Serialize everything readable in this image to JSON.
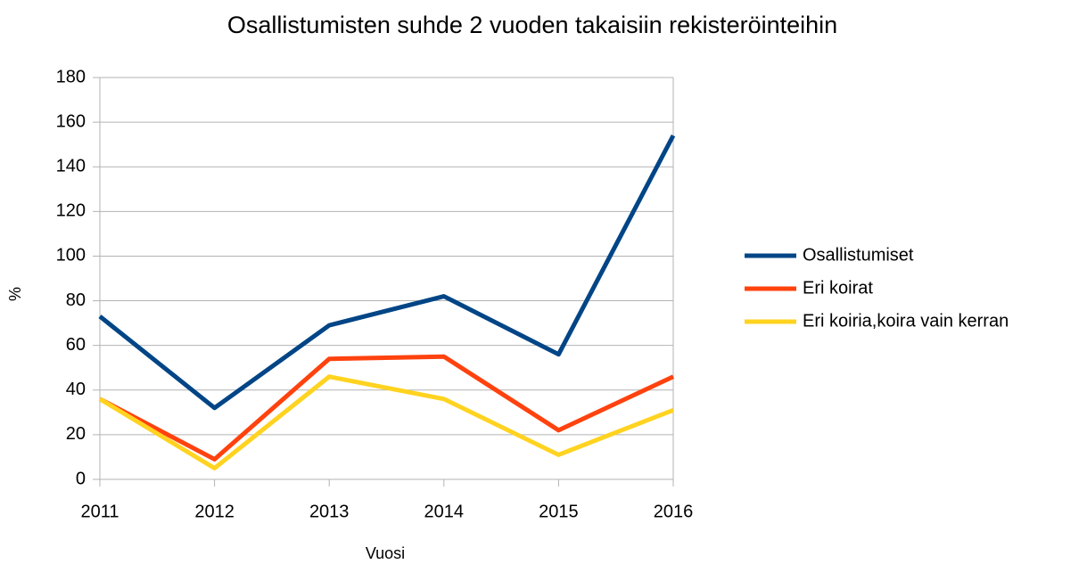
{
  "chart_data": {
    "type": "line",
    "title": "Osallistumisten suhde 2 vuoden takaisiin rekisteröinteihin",
    "x_label": "Vuosi",
    "y_label": "%",
    "categories": [
      "2011",
      "2012",
      "2013",
      "2014",
      "2015",
      "2016"
    ],
    "series": [
      {
        "name": "Osallistumiset",
        "color": "#004586",
        "values": [
          73,
          32,
          69,
          82,
          56,
          154
        ]
      },
      {
        "name": "Eri koirat",
        "color": "#ff420e",
        "values": [
          36,
          9,
          54,
          55,
          22,
          46
        ]
      },
      {
        "name": "Eri koiria,koira vain kerran",
        "color": "#ffd320",
        "values": [
          36,
          5,
          46,
          36,
          11,
          31
        ]
      }
    ],
    "ylim": [
      0,
      180
    ],
    "yticks": [
      0,
      20,
      40,
      60,
      80,
      100,
      120,
      140,
      160,
      180
    ],
    "grid": true,
    "legend": "right"
  }
}
